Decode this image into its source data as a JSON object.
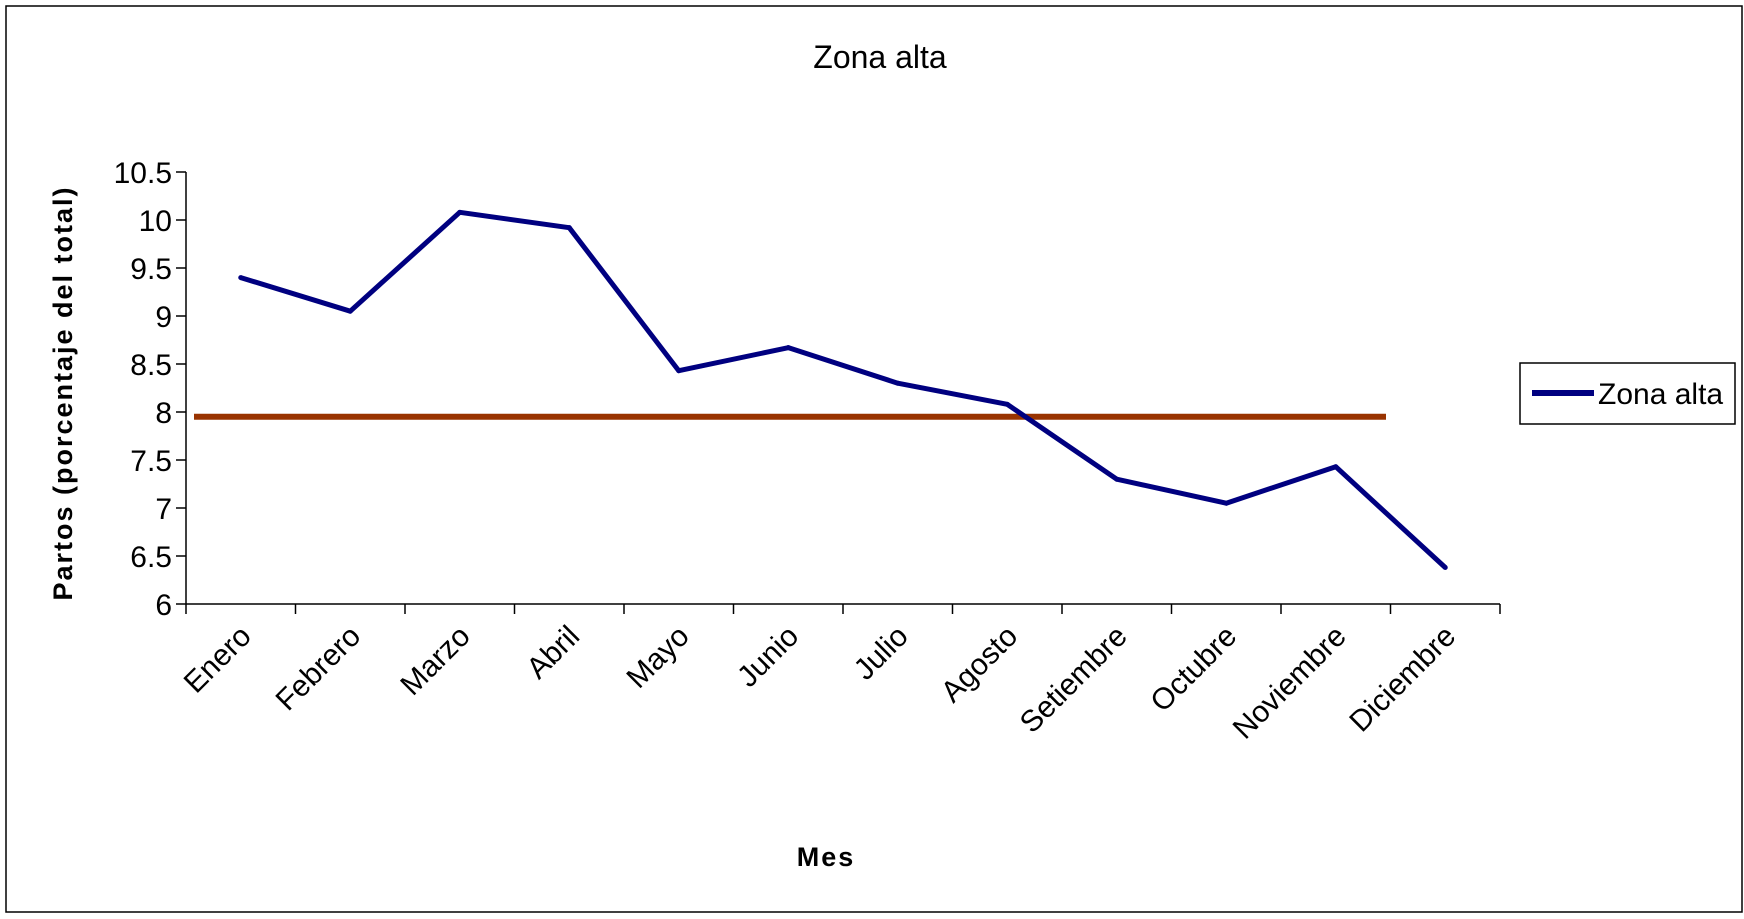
{
  "chart_data": {
    "type": "line",
    "title": "Zona alta",
    "xlabel": "Mes",
    "ylabel": "Partos (porcentaje del total)",
    "categories": [
      "Enero",
      "Febrero",
      "Marzo",
      "Abril",
      "Mayo",
      "Junio",
      "Julio",
      "Agosto",
      "Setiembre",
      "Octubre",
      "Noviembre",
      "Diciembre"
    ],
    "series": [
      {
        "name": "Zona alta",
        "color": "#000080",
        "values": [
          9.4,
          9.05,
          10.08,
          9.92,
          8.43,
          8.67,
          8.3,
          8.08,
          7.3,
          7.05,
          7.43,
          6.38
        ]
      }
    ],
    "reference_line": {
      "value": 7.95,
      "color": "#993300"
    },
    "ylim": [
      6,
      10.5
    ],
    "yticks": [
      "6",
      "6.5",
      "7",
      "7.5",
      "8",
      "8.5",
      "9",
      "9.5",
      "10",
      "10.5"
    ],
    "grid": false,
    "legend_position": "right"
  }
}
